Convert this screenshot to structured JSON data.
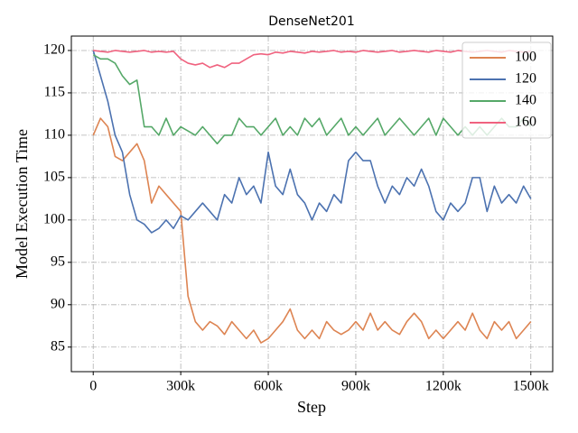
{
  "chart_data": {
    "type": "line",
    "title": "DenseNet201",
    "x_label": "Step",
    "y_label": "Model Execution Time",
    "x": [
      0,
      25000,
      50000,
      75000,
      100000,
      125000,
      150000,
      175000,
      200000,
      225000,
      250000,
      275000,
      300000,
      325000,
      350000,
      375000,
      400000,
      425000,
      450000,
      475000,
      500000,
      525000,
      550000,
      575000,
      600000,
      625000,
      650000,
      675000,
      700000,
      725000,
      750000,
      775000,
      800000,
      825000,
      850000,
      875000,
      900000,
      925000,
      950000,
      975000,
      1000000,
      1025000,
      1050000,
      1075000,
      1100000,
      1125000,
      1150000,
      1175000,
      1200000,
      1225000,
      1250000,
      1275000,
      1300000,
      1325000,
      1350000,
      1375000,
      1400000,
      1425000,
      1450000,
      1475000,
      1500000
    ],
    "series": [
      {
        "name": "100",
        "color": "#dd8452",
        "values": [
          110,
          112,
          111,
          107.5,
          107,
          108,
          109,
          107,
          102,
          104,
          103,
          102,
          101,
          91,
          88,
          87,
          88,
          87.5,
          86.5,
          88,
          87,
          86,
          87,
          85.5,
          86,
          87,
          88,
          89.5,
          87,
          86,
          87,
          86,
          88,
          87,
          86.5,
          87,
          88,
          87,
          89,
          87,
          88,
          87,
          86.5,
          88,
          89,
          88,
          86,
          87,
          86,
          87,
          88,
          87,
          89,
          87,
          86,
          88,
          87,
          88,
          86,
          87,
          88
        ]
      },
      {
        "name": "120",
        "color": "#4c72b0",
        "values": [
          120,
          117,
          114,
          110,
          108,
          103,
          100,
          99.5,
          98.5,
          99,
          100,
          99,
          100.5,
          100,
          101,
          102,
          101,
          100,
          103,
          102,
          105,
          103,
          104,
          102,
          108,
          104,
          103,
          106,
          103,
          102,
          100,
          102,
          101,
          103,
          102,
          107,
          108,
          107,
          107,
          104,
          102,
          104,
          103,
          105,
          104,
          106,
          104,
          101,
          100,
          102,
          101,
          102,
          105,
          105,
          101,
          104,
          102,
          103,
          102,
          104,
          102.5
        ]
      },
      {
        "name": "140",
        "color": "#55a868",
        "values": [
          119.5,
          119,
          119,
          118.5,
          117,
          116,
          116.5,
          111,
          111,
          110,
          112,
          110,
          111,
          110.5,
          110,
          111,
          110,
          109,
          110,
          110,
          112,
          111,
          111,
          110,
          111,
          112,
          110,
          111,
          110,
          112,
          111,
          112,
          110,
          111,
          112,
          110,
          111,
          110,
          111,
          112,
          110,
          111,
          112,
          111,
          110,
          111,
          112,
          110,
          112,
          111,
          110,
          111,
          110,
          111,
          110,
          111,
          112,
          111,
          111,
          112,
          111
        ]
      },
      {
        "name": "160",
        "color": "#f0627f",
        "values": [
          120,
          119.9,
          119.8,
          120,
          119.9,
          119.8,
          119.9,
          120,
          119.8,
          119.9,
          119.8,
          119.9,
          119,
          118.5,
          118.3,
          118.5,
          118,
          118.3,
          118,
          118.5,
          118.5,
          119,
          119.5,
          119.6,
          119.5,
          119.8,
          119.7,
          119.9,
          119.8,
          119.7,
          119.9,
          119.8,
          119.9,
          120,
          119.8,
          119.9,
          119.8,
          120,
          119.9,
          119.8,
          119.9,
          120,
          119.8,
          119.9,
          120,
          119.9,
          119.8,
          120,
          119.9,
          119.8,
          120,
          119.9,
          119.8,
          119.9,
          120,
          119.9,
          119.8,
          120,
          119.9,
          119.8,
          119.9
        ]
      }
    ],
    "xlim": [
      -75000,
      1575000
    ],
    "ylim": [
      82.1,
      121.7
    ],
    "xticks": [
      0,
      {
        "value": 300000,
        "label": "300k"
      },
      {
        "value": 600000,
        "label": "600k"
      },
      {
        "value": 900000,
        "label": "900k"
      },
      {
        "value": 1200000,
        "label": "1200k"
      },
      {
        "value": 1500000,
        "label": "1500k"
      }
    ],
    "yticks": [
      85,
      90,
      95,
      100,
      105,
      110,
      115,
      120
    ],
    "grid": true,
    "legend": "upper right"
  }
}
